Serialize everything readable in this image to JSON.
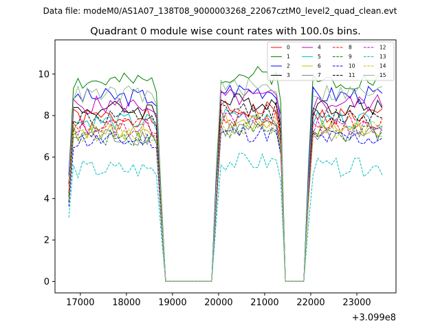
{
  "chart_data": {
    "type": "line",
    "suptitle": "Data file: modeM0/AS1A07_138T08_9000003268_22067cztM0_level2_quad_clean.evt",
    "title": "Quadrant 0 module wise count rates with 100.0s bins.",
    "xlabel": "",
    "ylabel": "",
    "x_offset_label": "+3.099e8",
    "xlim": [
      16450,
      23850
    ],
    "ylim": [
      -0.55,
      11.65
    ],
    "x_ticks": [
      17000,
      18000,
      19000,
      20000,
      21000,
      22000,
      23000
    ],
    "x_tick_labels": [
      "17000",
      "18000",
      "19000",
      "20000",
      "21000",
      "22000",
      "23000"
    ],
    "y_ticks": [
      0,
      2,
      4,
      6,
      8,
      10
    ],
    "y_tick_labels": [
      "0",
      "2",
      "4",
      "6",
      "8",
      "10"
    ],
    "legend_position": "top-right",
    "segments": [
      [
        16750,
        18750
      ],
      [
        19950,
        21350
      ],
      [
        21950,
        23550
      ]
    ],
    "series": [
      {
        "name": "0",
        "color": "#ff0000",
        "dash": "solid",
        "base": 7.9,
        "seed": 1
      },
      {
        "name": "1",
        "color": "#008000",
        "dash": "solid",
        "base": 9.6,
        "seed": 2
      },
      {
        "name": "2",
        "color": "#0000ff",
        "dash": "solid",
        "base": 8.9,
        "seed": 3
      },
      {
        "name": "3",
        "color": "#000000",
        "dash": "solid",
        "base": 8.3,
        "seed": 4
      },
      {
        "name": "4",
        "color": "#bf00bf",
        "dash": "solid",
        "base": 8.5,
        "seed": 5
      },
      {
        "name": "5",
        "color": "#00bfbf",
        "dash": "solid",
        "base": 7.7,
        "seed": 6
      },
      {
        "name": "6",
        "color": "#bfbf00",
        "dash": "solid",
        "base": 7.3,
        "seed": 7
      },
      {
        "name": "7",
        "color": "#808080",
        "dash": "solid",
        "base": 7.0,
        "seed": 8
      },
      {
        "name": "8",
        "color": "#ff0000",
        "dash": "dashed",
        "base": 7.5,
        "seed": 9
      },
      {
        "name": "9",
        "color": "#008000",
        "dash": "dashed",
        "base": 7.0,
        "seed": 10
      },
      {
        "name": "10",
        "color": "#0000ff",
        "dash": "dashed",
        "base": 6.8,
        "seed": 11
      },
      {
        "name": "11",
        "color": "#000000",
        "dash": "dashed",
        "base": 7.9,
        "seed": 12
      },
      {
        "name": "12",
        "color": "#bf00bf",
        "dash": "dashed",
        "base": 7.4,
        "seed": 13
      },
      {
        "name": "13",
        "color": "#00bfbf",
        "dash": "dashed",
        "base": 5.4,
        "seed": 14
      },
      {
        "name": "14",
        "color": "#bfbf00",
        "dash": "dashed",
        "base": 7.2,
        "seed": 15
      },
      {
        "name": "15",
        "color": "#8fbc8f",
        "dash": "solid",
        "base": 9.0,
        "seed": 16
      }
    ]
  }
}
